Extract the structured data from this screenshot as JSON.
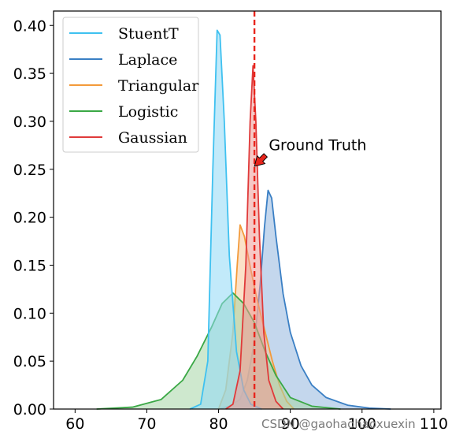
{
  "chart_data": {
    "type": "area",
    "xlim": [
      57,
      111
    ],
    "ylim": [
      0,
      0.415
    ],
    "x_ticks": [
      60,
      70,
      80,
      90,
      100,
      110
    ],
    "x_tick_labels": [
      "60",
      "70",
      "80",
      "90",
      "100",
      "110"
    ],
    "y_ticks": [
      0,
      0.05,
      0.1,
      0.15,
      0.2,
      0.25,
      0.3,
      0.35,
      0.4
    ],
    "y_tick_labels": [
      "0.00",
      "0.05",
      "0.10",
      "0.15",
      "0.20",
      "0.25",
      "0.30",
      "0.35",
      "0.40"
    ],
    "grid": false,
    "legend": "top-left",
    "series": [
      {
        "name": "StuentT",
        "color": "#3fc1f0",
        "fill": "#8fd8f5",
        "points": [
          [
            76,
            0
          ],
          [
            77.5,
            0.005
          ],
          [
            78.5,
            0.05
          ],
          [
            79.2,
            0.25
          ],
          [
            79.8,
            0.395
          ],
          [
            80.2,
            0.39
          ],
          [
            80.8,
            0.3
          ],
          [
            81.5,
            0.16
          ],
          [
            82.5,
            0.06
          ],
          [
            83.5,
            0.02
          ],
          [
            84.5,
            0.005
          ],
          [
            86,
            0
          ]
        ]
      },
      {
        "name": "Laplace",
        "color": "#3a7fc4",
        "fill": "#94b7de",
        "points": [
          [
            80,
            0
          ],
          [
            81.5,
            0.003
          ],
          [
            83,
            0.01
          ],
          [
            84,
            0.03
          ],
          [
            85,
            0.07
          ],
          [
            85.8,
            0.13
          ],
          [
            86.4,
            0.19
          ],
          [
            86.9,
            0.228
          ],
          [
            87.4,
            0.22
          ],
          [
            88,
            0.18
          ],
          [
            89,
            0.12
          ],
          [
            90,
            0.08
          ],
          [
            91.5,
            0.045
          ],
          [
            93,
            0.025
          ],
          [
            95,
            0.012
          ],
          [
            98,
            0.004
          ],
          [
            101,
            0.001
          ],
          [
            104,
            0
          ]
        ]
      },
      {
        "name": "Triangular",
        "color": "#f39a3a",
        "fill": "#f7c89a",
        "points": [
          [
            80,
            0
          ],
          [
            81,
            0.02
          ],
          [
            82,
            0.08
          ],
          [
            82.6,
            0.15
          ],
          [
            83,
            0.192
          ],
          [
            83.6,
            0.18
          ],
          [
            84.5,
            0.145
          ],
          [
            85.5,
            0.11
          ],
          [
            86.5,
            0.08
          ],
          [
            87.5,
            0.05
          ],
          [
            88.5,
            0.025
          ],
          [
            89.5,
            0.008
          ],
          [
            90.5,
            0
          ]
        ]
      },
      {
        "name": "Logistic",
        "color": "#3aa845",
        "fill": "#a6d6a6",
        "points": [
          [
            63,
            0
          ],
          [
            68,
            0.002
          ],
          [
            72,
            0.01
          ],
          [
            75,
            0.03
          ],
          [
            77,
            0.055
          ],
          [
            79,
            0.085
          ],
          [
            80.5,
            0.11
          ],
          [
            82,
            0.121
          ],
          [
            83.5,
            0.11
          ],
          [
            85,
            0.09
          ],
          [
            86.5,
            0.06
          ],
          [
            88,
            0.035
          ],
          [
            90,
            0.012
          ],
          [
            93,
            0.003
          ],
          [
            97,
            0
          ]
        ]
      },
      {
        "name": "Gaussian",
        "color": "#e03a3a",
        "fill": "#ef9a96",
        "points": [
          [
            81,
            0
          ],
          [
            82,
            0.005
          ],
          [
            83,
            0.04
          ],
          [
            83.8,
            0.15
          ],
          [
            84.4,
            0.3
          ],
          [
            84.8,
            0.358
          ],
          [
            85.2,
            0.3
          ],
          [
            85.7,
            0.18
          ],
          [
            86.3,
            0.08
          ],
          [
            87,
            0.03
          ],
          [
            88,
            0.008
          ],
          [
            89,
            0
          ]
        ]
      }
    ],
    "ground_truth": {
      "x": 85,
      "color": "#e8251c",
      "label": "Ground Truth",
      "arrow_tip": [
        85,
        0.253
      ],
      "text_xy": [
        87,
        0.27
      ]
    }
  },
  "watermark": "CSDN @gaohaohaoxuexin"
}
